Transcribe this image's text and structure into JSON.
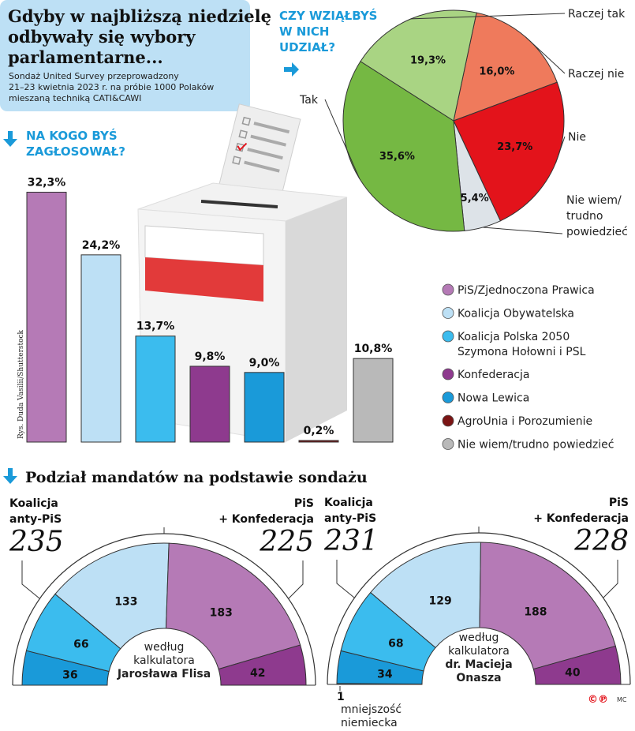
{
  "header": {
    "title_lines": [
      "Gdyby w najbliższą niedzielę",
      "odbywały się wybory",
      "parlamentarne..."
    ],
    "subtitle_lines": [
      "Sondaż United Survey przeprowadzony",
      "21–23 kwietnia 2023 r. na próbie 1000 Polaków",
      "mieszaną techniką CATI&CAWI"
    ]
  },
  "turnout_heading": {
    "lines": [
      "CZY WZIĄŁBYŚ",
      "W NICH",
      "UDZIAŁ?"
    ],
    "icon": "arrow-right-icon"
  },
  "vote_heading": {
    "lines": [
      "NA KOGO BYŚ",
      "ZAGŁOSOWAŁ?"
    ],
    "icon": "arrow-down-icon"
  },
  "credit": "Rys. Duda Vasilii/Shutterstock",
  "seats_heading": "Podział mandatów na podstawie sondażu",
  "footer": {
    "copyright": "©℗",
    "author": "MC"
  },
  "chart_data": [
    {
      "type": "pie",
      "title": "CZY WZIĄŁBYŚ W NICH UDZIAŁ?",
      "slices": [
        {
          "label": "Raczej nie",
          "value": 16.0,
          "value_label": "16,0%",
          "color": "#ef7a5c"
        },
        {
          "label": "Nie",
          "value": 23.7,
          "value_label": "23,7%",
          "color": "#e3131b"
        },
        {
          "label": "Nie wiem/ trudno powiedzieć",
          "label_lines": [
            "Nie wiem/",
            "trudno",
            "powiedzieć"
          ],
          "value": 5.4,
          "value_label": "5,4%",
          "color": "#dde3e8"
        },
        {
          "label": "Tak",
          "value": 35.6,
          "value_label": "35,6%",
          "color": "#75b843"
        },
        {
          "label": "Raczej tak",
          "value": 19.3,
          "value_label": "19,3%",
          "color": "#a9d483"
        }
      ]
    },
    {
      "type": "bar",
      "title": "NA KOGO BYŚ ZAGŁOSOWAŁ?",
      "categories": [
        "PiS/Zjednoczona Prawica",
        "Koalicja Obywatelska",
        "Koalicja Polska 2050 Szymona Hołowni i PSL",
        "Konfederacja",
        "Nowa Lewica",
        "AgroUnia i Porozumienie",
        "Nie wiem/trudno powiedzieć"
      ],
      "legend_lines": [
        [
          "PiS/Zjednoczona Prawica"
        ],
        [
          "Koalicja Obywatelska"
        ],
        [
          "Koalicja Polska 2050",
          "Szymona Hołowni i PSL"
        ],
        [
          "Konfederacja"
        ],
        [
          "Nowa Lewica"
        ],
        [
          "AgroUnia i Porozumienie"
        ],
        [
          "Nie wiem/trudno powiedzieć"
        ]
      ],
      "values": [
        32.3,
        24.2,
        13.7,
        9.8,
        9.0,
        0.2,
        10.8
      ],
      "value_labels": [
        "32,3%",
        "24,2%",
        "13,7%",
        "9,8%",
        "9,0%",
        "0,2%",
        "10,8%"
      ],
      "colors": [
        "#b57ab6",
        "#bde0f5",
        "#3bbcee",
        "#8e3a8e",
        "#1a9ad9",
        "#7a1414",
        "#b9b9b9"
      ],
      "legend": "right"
    },
    {
      "type": "semicircle",
      "center_lines": [
        "według",
        "kalkulatora",
        "Jarosława Flisa"
      ],
      "left_group": {
        "label_lines": [
          "Koalicja",
          "anty-PiS"
        ],
        "total": "235"
      },
      "right_group": {
        "label_lines": [
          "PiS",
          "+ Konfederacja"
        ],
        "total": "225"
      },
      "segments": [
        {
          "party": "Nowa Lewica",
          "seats": 36,
          "color": "#1a9ad9"
        },
        {
          "party": "Koalicja Polska 2050 Szymona Hołowni i PSL",
          "seats": 66,
          "color": "#3bbcee"
        },
        {
          "party": "Koalicja Obywatelska",
          "seats": 133,
          "color": "#bde0f5"
        },
        {
          "party": "PiS/Zjednoczona Prawica",
          "seats": 183,
          "color": "#b57ab6"
        },
        {
          "party": "Konfederacja",
          "seats": 42,
          "color": "#8e3a8e"
        }
      ]
    },
    {
      "type": "semicircle",
      "center_lines": [
        "według",
        "kalkulatora",
        "dr. Macieja",
        "Onasza"
      ],
      "left_group": {
        "label_lines": [
          "Koalicja",
          "anty-PiS"
        ],
        "total": "231"
      },
      "right_group": {
        "label_lines": [
          "PiS",
          "+ Konfederacja"
        ],
        "total": "228"
      },
      "minority_note": {
        "seats": "1",
        "label_lines": [
          "mniejszość",
          "niemiecka"
        ]
      },
      "segments": [
        {
          "party": "mniejszość niemiecka",
          "seats": 1,
          "color": "#555555"
        },
        {
          "party": "Nowa Lewica",
          "seats": 34,
          "color": "#1a9ad9"
        },
        {
          "party": "Koalicja Polska 2050 Szymona Hołowni i PSL",
          "seats": 68,
          "color": "#3bbcee"
        },
        {
          "party": "Koalicja Obywatelska",
          "seats": 129,
          "color": "#bde0f5"
        },
        {
          "party": "PiS/Zjednoczona Prawica",
          "seats": 188,
          "color": "#b57ab6"
        },
        {
          "party": "Konfederacja",
          "seats": 40,
          "color": "#8e3a8e"
        }
      ]
    }
  ]
}
